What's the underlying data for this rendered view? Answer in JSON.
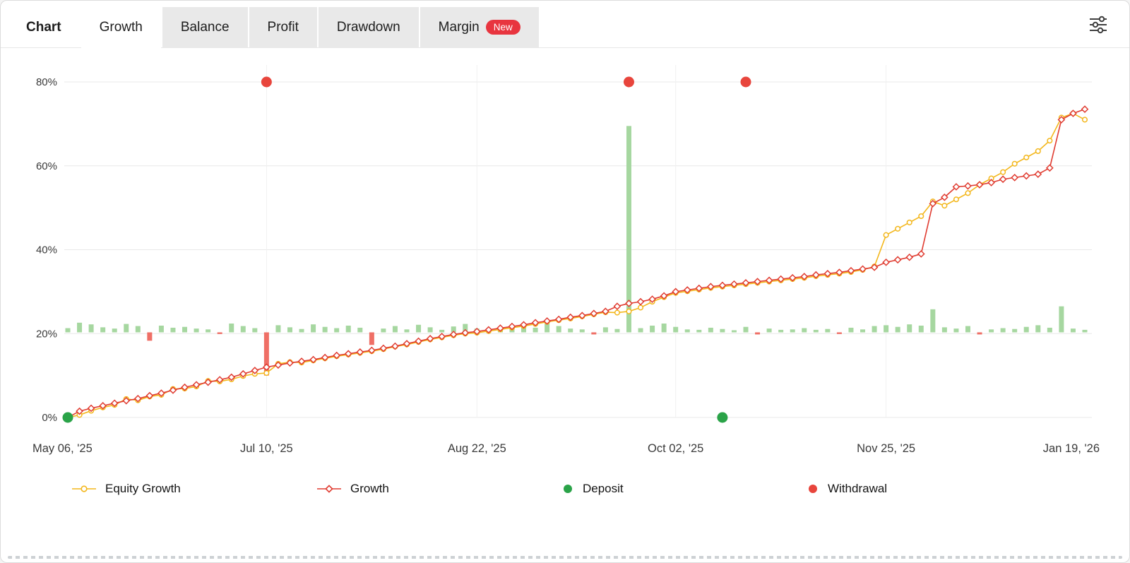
{
  "tabs": [
    {
      "label": "Chart"
    },
    {
      "label": "Growth"
    },
    {
      "label": "Balance"
    },
    {
      "label": "Profit"
    },
    {
      "label": "Drawdown"
    },
    {
      "label": "Margin",
      "badge": "New"
    }
  ],
  "legend": {
    "items": [
      {
        "label": "Equity Growth",
        "color": "#f3b71c",
        "marker": "line-circle"
      },
      {
        "label": "Growth",
        "color": "#e03c31",
        "marker": "line-diamond"
      },
      {
        "label": "Deposit",
        "color": "#2aa348",
        "marker": "dot"
      },
      {
        "label": "Withdrawal",
        "color": "#e8453c",
        "marker": "dot"
      }
    ]
  },
  "chart_data": {
    "type": "line",
    "title": "",
    "xlabel": "",
    "ylabel": "",
    "ylim": [
      0,
      80
    ],
    "y_ticks": [
      0,
      20,
      40,
      60,
      80
    ],
    "y_tick_labels": [
      "0%",
      "20%",
      "40%",
      "60%",
      "80%"
    ],
    "x_ticks": [
      {
        "index": 0,
        "label": "May 06, '25"
      },
      {
        "index": 17,
        "label": "Jul 10, '25"
      },
      {
        "index": 35,
        "label": "Aug 22, '25"
      },
      {
        "index": 52,
        "label": "Oct 02, '25"
      },
      {
        "index": 70,
        "label": "Nov 25, '25"
      },
      {
        "index": 87,
        "label": "Jan 19, '26"
      }
    ],
    "series": [
      {
        "name": "Equity Growth",
        "color": "#f3b71c",
        "marker": "circle",
        "values": [
          0,
          0.6,
          1.6,
          2.4,
          3,
          4.4,
          4.1,
          5,
          5.4,
          6.8,
          6.9,
          7.4,
          8.7,
          8.6,
          9.1,
          9.9,
          10.4,
          10.6,
          12.8,
          13.2,
          13.1,
          13.6,
          14.1,
          14.6,
          15,
          15.4,
          15.8,
          16.3,
          16.9,
          17.4,
          18,
          18.6,
          19.1,
          19.6,
          20,
          20.2,
          20.6,
          21,
          21.4,
          21.8,
          22.3,
          22.8,
          23.2,
          23.6,
          24.1,
          24.6,
          25.1,
          25,
          25.3,
          26.2,
          27.6,
          28.7,
          29.7,
          30.1,
          30.5,
          30.9,
          31.2,
          31.5,
          31.8,
          32.1,
          32.4,
          32.7,
          33,
          33.3,
          33.7,
          34,
          34.3,
          34.7,
          35.2,
          36,
          43.5,
          45,
          46.5,
          48,
          51.5,
          50.5,
          52,
          53.5,
          55.5,
          57,
          58.5,
          60.5,
          62,
          63.5,
          66,
          71.5,
          72.5,
          71
        ]
      },
      {
        "name": "Growth",
        "color": "#e03c31",
        "marker": "diamond",
        "values": [
          0,
          1.5,
          2.2,
          2.8,
          3.4,
          4,
          4.5,
          5.2,
          5.8,
          6.5,
          7.2,
          7.8,
          8.4,
          9,
          9.6,
          10.4,
          11.2,
          12,
          12.5,
          13,
          13.4,
          13.8,
          14.3,
          14.8,
          15.2,
          15.6,
          16,
          16.5,
          17,
          17.6,
          18.2,
          18.8,
          19.3,
          19.8,
          20.2,
          20.5,
          20.9,
          21.3,
          21.7,
          22.1,
          22.6,
          23,
          23.4,
          23.9,
          24.3,
          24.8,
          25.3,
          26.5,
          27.2,
          27.6,
          28.2,
          29,
          30,
          30.4,
          30.8,
          31.2,
          31.5,
          31.8,
          32.1,
          32.4,
          32.7,
          33,
          33.3,
          33.6,
          34,
          34.3,
          34.6,
          35,
          35.4,
          35.8,
          37,
          37.6,
          38.2,
          39,
          51,
          52.5,
          55,
          55.2,
          55.5,
          56,
          56.8,
          57.2,
          57.6,
          58,
          59.5,
          71,
          72.5,
          73.5
        ]
      }
    ],
    "profit_bars": {
      "baseline": 20.3,
      "green": "#a6d7a0",
      "red": "#ef6f66",
      "tops": [
        21.3,
        22.6,
        22.2,
        21.5,
        21.2,
        22.3,
        21.8,
        18.3,
        21.9,
        21.4,
        21.6,
        21.2,
        21,
        19.9,
        22.4,
        21.8,
        21.3,
        10,
        22,
        21.5,
        21.1,
        22.2,
        21.6,
        21.3,
        21.9,
        21.4,
        17.3,
        21.2,
        21.8,
        21,
        22.1,
        21.5,
        20.9,
        21.7,
        22.3,
        21.2,
        21,
        21.6,
        21.1,
        22,
        21.4,
        22.6,
        21.8,
        21.2,
        21,
        19.8,
        21.5,
        21.1,
        69.5,
        21.3,
        21.9,
        22.4,
        21.6,
        21,
        20.9,
        21.4,
        21.1,
        20.8,
        21.6,
        19.8,
        21.2,
        20.9,
        21,
        21.3,
        20.9,
        21.1,
        19.9,
        21.4,
        21,
        21.8,
        22,
        21.6,
        22.2,
        21.9,
        25.8,
        21.5,
        21.2,
        21.8,
        19.8,
        21,
        21.3,
        21.1,
        21.6,
        22,
        21.4,
        26.5,
        21.2,
        20.9
      ]
    },
    "deposits": {
      "color": "#2aa348",
      "points": [
        {
          "index": 0,
          "value": 0
        },
        {
          "index": 56,
          "value": 0
        }
      ]
    },
    "withdrawals": {
      "color": "#e8453c",
      "points": [
        {
          "index": 17,
          "value": 80
        },
        {
          "index": 48,
          "value": 80
        },
        {
          "index": 58,
          "value": 80
        }
      ]
    },
    "grid": true,
    "legend_position": "bottom"
  }
}
